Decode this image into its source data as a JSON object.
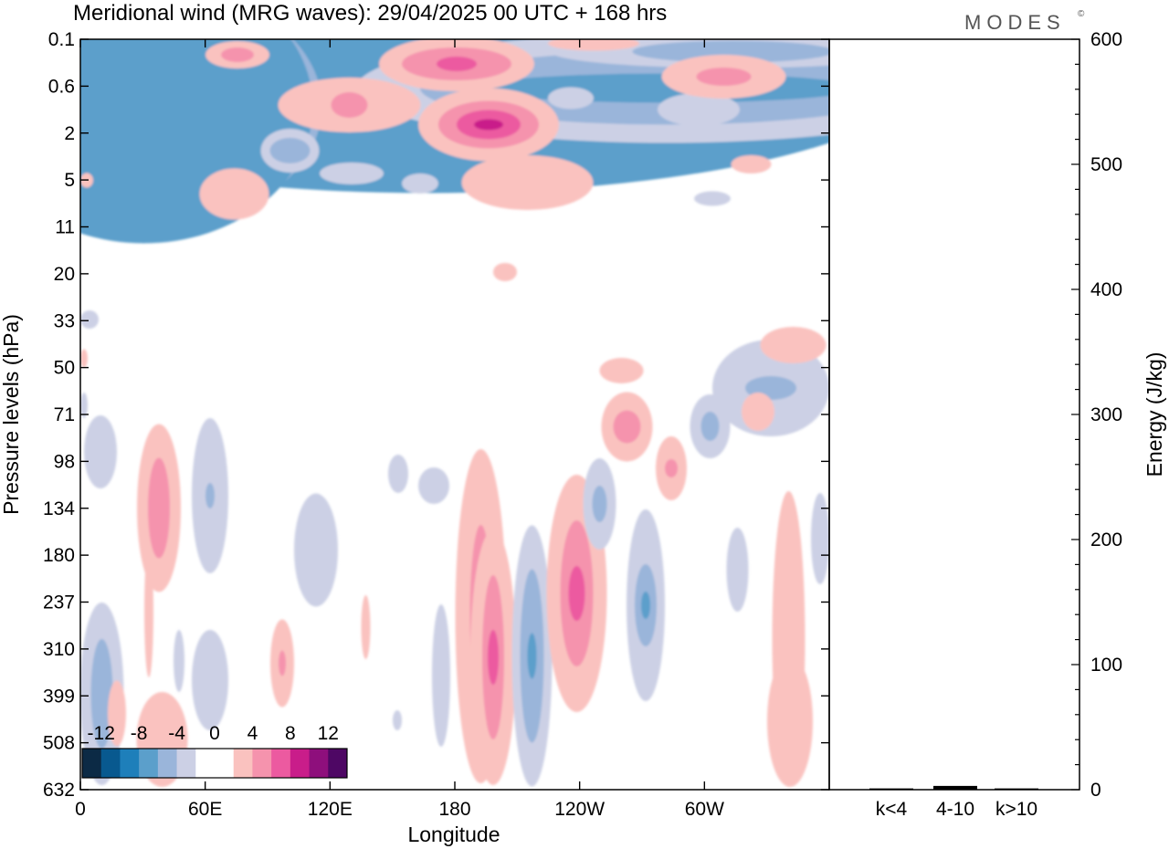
{
  "header": {
    "title": "Meridional wind (MRG waves):  29/04/2025  00 UTC  + 168 hrs",
    "logo": "MODES",
    "logo_mark": "©"
  },
  "chart_data": {
    "type": "heatmap",
    "title": "Meridional wind (MRG waves):  29/04/2025  00 UTC  + 168 hrs",
    "xlabel": "Longitude",
    "ylabel": "Pressure levels (hPa)",
    "x_ticks": [
      "0",
      "60E",
      "120E",
      "180",
      "120W",
      "60W"
    ],
    "y_ticks": [
      "0.1",
      "0.6",
      "2",
      "5",
      "11",
      "20",
      "33",
      "50",
      "71",
      "98",
      "134",
      "180",
      "237",
      "310",
      "399",
      "508",
      "632"
    ],
    "colorbar": {
      "labels": [
        "-12",
        "-8",
        "-4",
        "0",
        "4",
        "8",
        "12"
      ],
      "colors": [
        "#0c2a45",
        "#08598f",
        "#1e7fba",
        "#5b9fcb",
        "#9ab5da",
        "#ccd0e5",
        "#ffffff",
        "#ffffff",
        "#fac2bf",
        "#f593ad",
        "#ec5aa0",
        "#c91d8a",
        "#8e0f7c",
        "#4e0764"
      ]
    },
    "energy_panel": {
      "ylabel": "Energy (J/kg)",
      "y_ticks": [
        "0",
        "100",
        "200",
        "300",
        "400",
        "500",
        "600"
      ],
      "ylim": [
        0,
        600
      ],
      "categories": [
        "k<4",
        "4-10",
        "k>10"
      ],
      "values": [
        1,
        3,
        1
      ]
    }
  }
}
